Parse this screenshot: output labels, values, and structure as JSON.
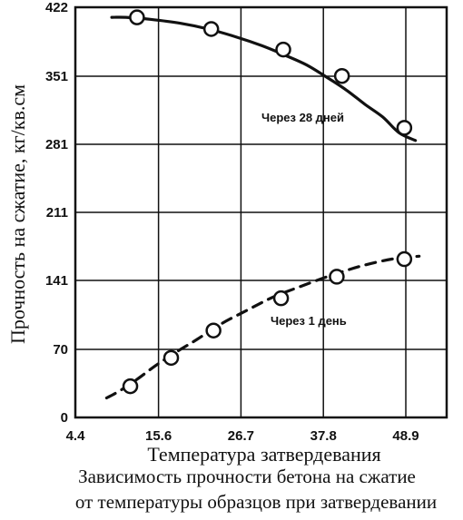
{
  "chart_data": {
    "type": "line",
    "title": "",
    "xlabel": "Температура затвердевания",
    "ylabel": "Прочность на сжатие, кг/кв.см",
    "xlim": [
      4.4,
      54.4
    ],
    "ylim": [
      0,
      422
    ],
    "x_ticks": [
      "4.4",
      "15.6",
      "26.7",
      "37.8",
      "48.9"
    ],
    "y_ticks": [
      "0",
      "70",
      "141",
      "211",
      "281",
      "351",
      "422"
    ],
    "grid": true,
    "series": [
      {
        "name": "Через 28 дней",
        "style": "solid",
        "curve_x": [
          9.3,
          11.2,
          14.5,
          18.5,
          22.3,
          26.0,
          29.5,
          32.7,
          35.6,
          38.4,
          41.0,
          43.4,
          45.8,
          48.0,
          50.2
        ],
        "curve_y": [
          411.6,
          411.6,
          409.6,
          405.6,
          399.6,
          391.6,
          382.5,
          372.4,
          362.4,
          349.3,
          336.2,
          322.1,
          309.0,
          292.9,
          284.9
        ],
        "points_x": [
          12.7,
          22.7,
          32.4,
          40.3,
          48.7
        ],
        "points_y": [
          411.6,
          399.6,
          378.5,
          351.3,
          298.0
        ]
      },
      {
        "name": "Через 1 день",
        "style": "dashed",
        "curve_x": [
          8.6,
          10.3,
          12.7,
          15.2,
          17.8,
          20.8,
          24.1,
          27.6,
          31.0,
          34.7,
          38.7,
          42.9,
          47.0,
          50.7
        ],
        "curve_y": [
          20.1,
          27.1,
          39.2,
          53.3,
          66.4,
          80.4,
          96.5,
          110.6,
          123.7,
          134.7,
          145.8,
          155.8,
          162.9,
          165.9
        ],
        "points_x": [
          11.8,
          17.3,
          23.0,
          32.1,
          39.6,
          48.7
        ],
        "points_y": [
          32.1,
          61.3,
          89.4,
          122.6,
          144.8,
          162.9
        ]
      }
    ],
    "annotations": []
  },
  "caption": {
    "line1": "Зависимость прочности бетона на сжатие",
    "line2": "от температуры образцов при затвердевании"
  }
}
